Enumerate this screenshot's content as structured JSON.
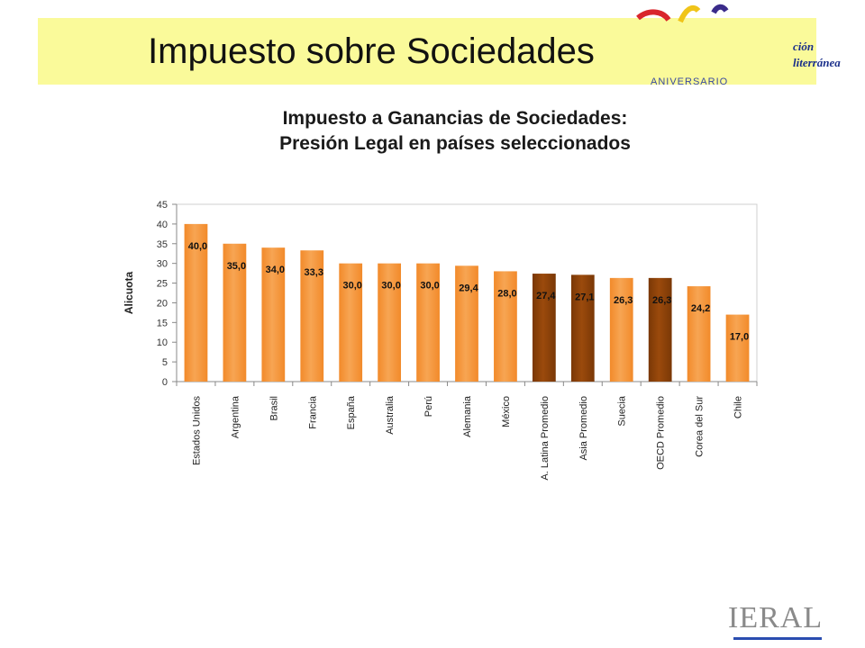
{
  "slide": {
    "title": "Impuesto sobre Sociedades",
    "logo_top_fragments": [
      "ción",
      "literránea"
    ],
    "logo_top_small": "ANIVERSARIO",
    "logo_bottom": "IERAL"
  },
  "chart_data": {
    "type": "bar",
    "title_line1": "Impuesto a Ganancias de Sociedades:",
    "title_line2": "Presión Legal en países seleccionados",
    "xlabel": "",
    "ylabel": "Alicuota",
    "ylim": [
      0,
      45
    ],
    "yticks": [
      0,
      5,
      10,
      15,
      20,
      25,
      30,
      35,
      40,
      45
    ],
    "grid": false,
    "categories": [
      "Estados Unidos",
      "Argentina",
      "Brasil",
      "Francia",
      "España",
      "Australia",
      "Perú",
      "Alemania",
      "México",
      "A. Latina Promedio",
      "Asia Promedio",
      "Suecia",
      "OECD Promedio",
      "Corea del Sur",
      "Chile"
    ],
    "values": [
      40.0,
      35.0,
      34.0,
      33.3,
      30.0,
      30.0,
      30.0,
      29.4,
      28.0,
      27.4,
      27.1,
      26.3,
      26.3,
      24.2,
      17.0
    ],
    "value_labels": [
      "40,0",
      "35,0",
      "34,0",
      "33,3",
      "30,0",
      "30,0",
      "30,0",
      "29,4",
      "28,0",
      "27,4",
      "27,1",
      "26,3",
      "26,3",
      "24,2",
      "17,0"
    ],
    "highlighted": [
      "A. Latina Promedio",
      "Asia Promedio",
      "OECD Promedio"
    ],
    "colors": {
      "bar": "#f28a2a",
      "bar_light": "#f7a553",
      "highlight": "#9b4a0c",
      "highlight_dark": "#7a3806",
      "axis": "#888888"
    }
  }
}
